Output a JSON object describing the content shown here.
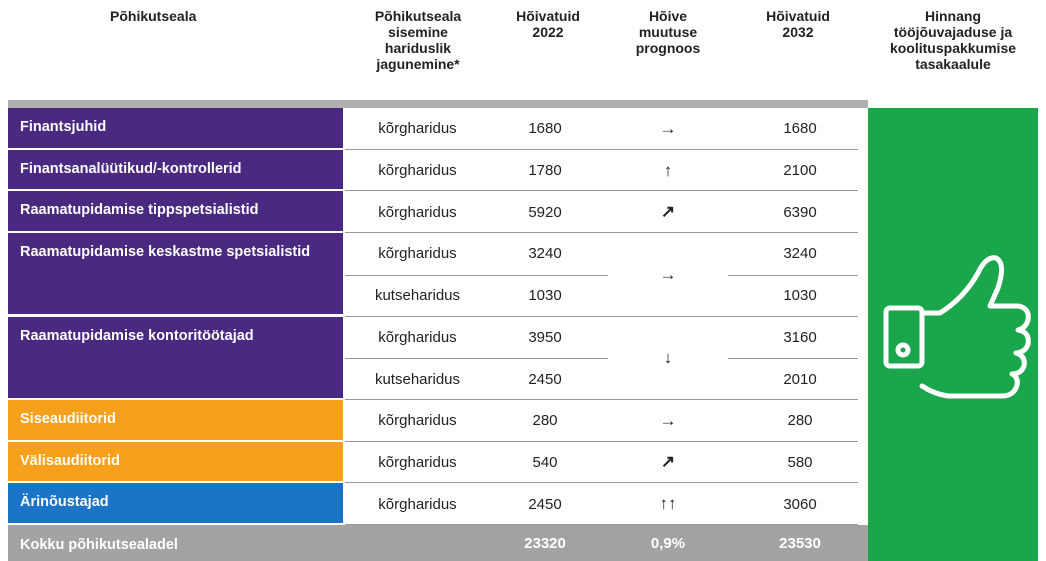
{
  "header": {
    "columns": [
      "Põhikutseala",
      "Põhikutseala sisemine hariduslik jagunemine*",
      "Hõivatuid 2022",
      "Hõive muutuse prognoos",
      "Hõivatuid 2032",
      "Hinnang tööjõuvajaduse ja koolituspakkumise tasakaalule"
    ]
  },
  "table": {
    "groups": [
      {
        "occupation": "Finantsjuhid",
        "color": "#4a2a80",
        "forecast": "→",
        "rows": [
          {
            "education": "kõrgharidus",
            "employed_2022": 1680,
            "employed_2032": 1680
          }
        ]
      },
      {
        "occupation": "Finantsanalüütikud/-kontrollerid",
        "color": "#4a2a80",
        "forecast": "↑",
        "rows": [
          {
            "education": "kõrgharidus",
            "employed_2022": 1780,
            "employed_2032": 2100
          }
        ]
      },
      {
        "occupation": "Raamatupidamise tippspetsialistid",
        "color": "#4a2a80",
        "forecast": "↗",
        "rows": [
          {
            "education": "kõrgharidus",
            "employed_2022": 5920,
            "employed_2032": 6390
          }
        ]
      },
      {
        "occupation": "Raamatupidamise keskastme spetsialistid",
        "color": "#4a2a80",
        "forecast": "→",
        "rows": [
          {
            "education": "kõrgharidus",
            "employed_2022": 3240,
            "employed_2032": 3240
          },
          {
            "education": "kutseharidus",
            "employed_2022": 1030,
            "employed_2032": 1030
          }
        ]
      },
      {
        "occupation": "Raamatupidamise kontoritöötajad",
        "color": "#4a2a80",
        "forecast": "↓",
        "rows": [
          {
            "education": "kõrgharidus",
            "employed_2022": 3950,
            "employed_2032": 3160
          },
          {
            "education": "kutseharidus",
            "employed_2022": 2450,
            "employed_2032": 2010
          }
        ]
      },
      {
        "occupation": "Siseaudiitorid",
        "color": "#f7a01c",
        "forecast": "→",
        "rows": [
          {
            "education": "kõrgharidus",
            "employed_2022": 280,
            "employed_2032": 280
          }
        ]
      },
      {
        "occupation": "Välisaudiitorid",
        "color": "#f7a01c",
        "forecast": "↗",
        "rows": [
          {
            "education": "kõrgharidus",
            "employed_2022": 540,
            "employed_2032": 580
          }
        ]
      },
      {
        "occupation": "Ärinõustajad",
        "color": "#1b74c8",
        "forecast": "↑↑",
        "rows": [
          {
            "education": "kõrgharidus",
            "employed_2022": 2450,
            "employed_2032": 3060
          }
        ]
      }
    ],
    "total": {
      "label": "Kokku põhikutsealadel",
      "employed_2022": 23320,
      "forecast": "0,9%",
      "employed_2032": 23530
    }
  }
}
